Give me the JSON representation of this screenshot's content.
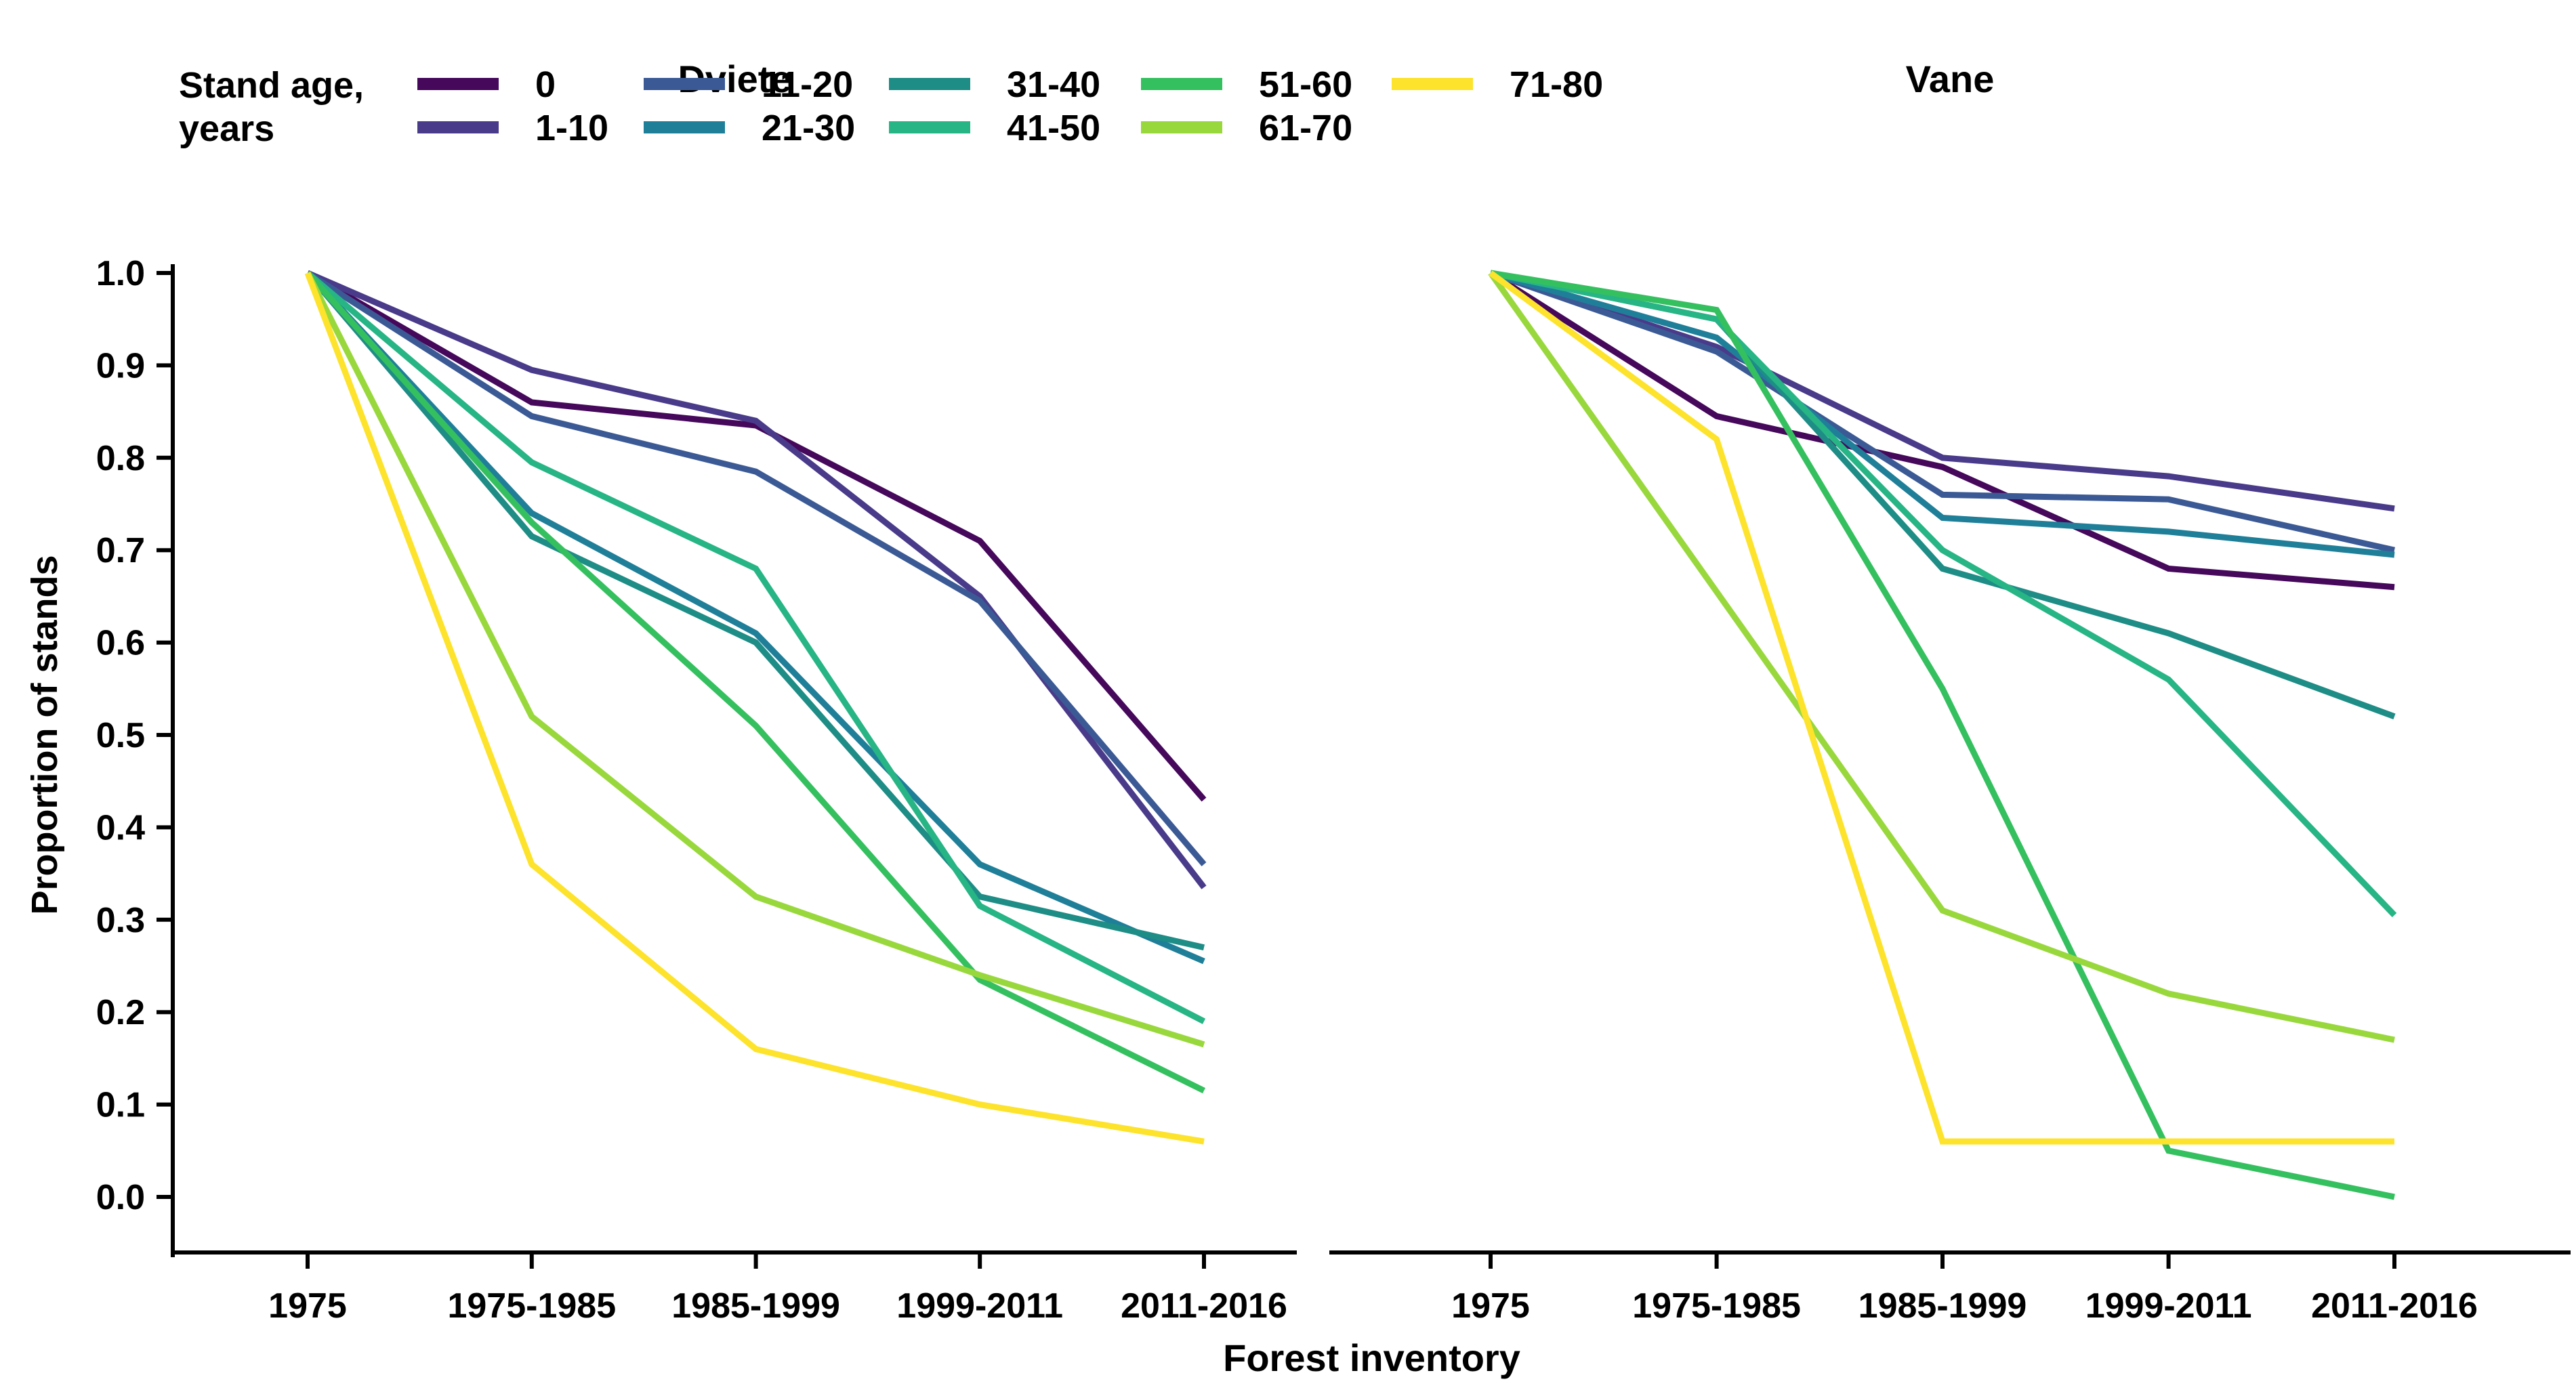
{
  "chart_data": {
    "type": "line",
    "xlabel": "Forest inventory",
    "ylabel": "Proportion of stands",
    "legend_title_line1": "Stand age,",
    "legend_title_line2": "years",
    "categories": [
      "1975",
      "1975-1985",
      "1985-1999",
      "1999-2011",
      "2011-2016"
    ],
    "yticks": [
      "1.0",
      "0.9",
      "0.8",
      "0.7",
      "0.6",
      "0.5",
      "0.4",
      "0.3",
      "0.2",
      "0.1",
      "0.0"
    ],
    "ylim": [
      0.0,
      1.0
    ],
    "grid": "off",
    "legend_position": "top",
    "legend_rows": [
      [
        "0",
        "11-20",
        "31-40",
        "51-60",
        "71-80"
      ],
      [
        "1-10",
        "21-30",
        "41-50",
        "61-70"
      ]
    ],
    "series_colors": {
      "0": "#45085b",
      "1-10": "#4a3a8a",
      "11-20": "#3b5a95",
      "21-30": "#1f7f99",
      "31-40": "#1e8d86",
      "41-50": "#27b585",
      "51-60": "#35c05f",
      "61-70": "#99d83c",
      "71-80": "#fde32b"
    },
    "panels": [
      {
        "title": "Dviete",
        "series": [
          {
            "name": "0",
            "values": [
              1.0,
              0.86,
              0.835,
              0.71,
              0.43
            ]
          },
          {
            "name": "1-10",
            "values": [
              1.0,
              0.895,
              0.84,
              0.65,
              0.335
            ]
          },
          {
            "name": "11-20",
            "values": [
              1.0,
              0.845,
              0.785,
              0.645,
              0.36
            ]
          },
          {
            "name": "21-30",
            "values": [
              1.0,
              0.74,
              0.61,
              0.36,
              0.255
            ]
          },
          {
            "name": "31-40",
            "values": [
              1.0,
              0.715,
              0.6,
              0.325,
              0.27
            ]
          },
          {
            "name": "41-50",
            "values": [
              1.0,
              0.795,
              0.68,
              0.315,
              0.19
            ]
          },
          {
            "name": "51-60",
            "values": [
              1.0,
              0.73,
              0.51,
              0.235,
              0.115
            ]
          },
          {
            "name": "61-70",
            "values": [
              1.0,
              0.52,
              0.325,
              0.24,
              0.165
            ]
          },
          {
            "name": "71-80",
            "values": [
              1.0,
              0.36,
              0.16,
              0.1,
              0.06
            ]
          }
        ]
      },
      {
        "title": "Vane",
        "series": [
          {
            "name": "0",
            "values": [
              1.0,
              0.845,
              0.79,
              0.68,
              0.66
            ]
          },
          {
            "name": "1-10",
            "values": [
              1.0,
              0.92,
              0.8,
              0.78,
              0.745
            ]
          },
          {
            "name": "11-20",
            "values": [
              1.0,
              0.915,
              0.76,
              0.755,
              0.7
            ]
          },
          {
            "name": "21-30",
            "values": [
              1.0,
              0.93,
              0.735,
              0.72,
              0.695
            ]
          },
          {
            "name": "31-40",
            "values": [
              1.0,
              0.95,
              0.68,
              0.61,
              0.52
            ]
          },
          {
            "name": "41-50",
            "values": [
              1.0,
              0.95,
              0.7,
              0.56,
              0.305
            ]
          },
          {
            "name": "51-60",
            "values": [
              1.0,
              0.96,
              0.55,
              0.05,
              0.0
            ]
          },
          {
            "name": "61-70",
            "values": [
              1.0,
              0.655,
              0.31,
              0.22,
              0.17
            ]
          },
          {
            "name": "71-80",
            "values": [
              1.0,
              0.82,
              0.06,
              0.06,
              0.06
            ]
          }
        ]
      }
    ]
  },
  "layout_note_colors": {
    "text": "#000000",
    "background": "#ffffff"
  }
}
